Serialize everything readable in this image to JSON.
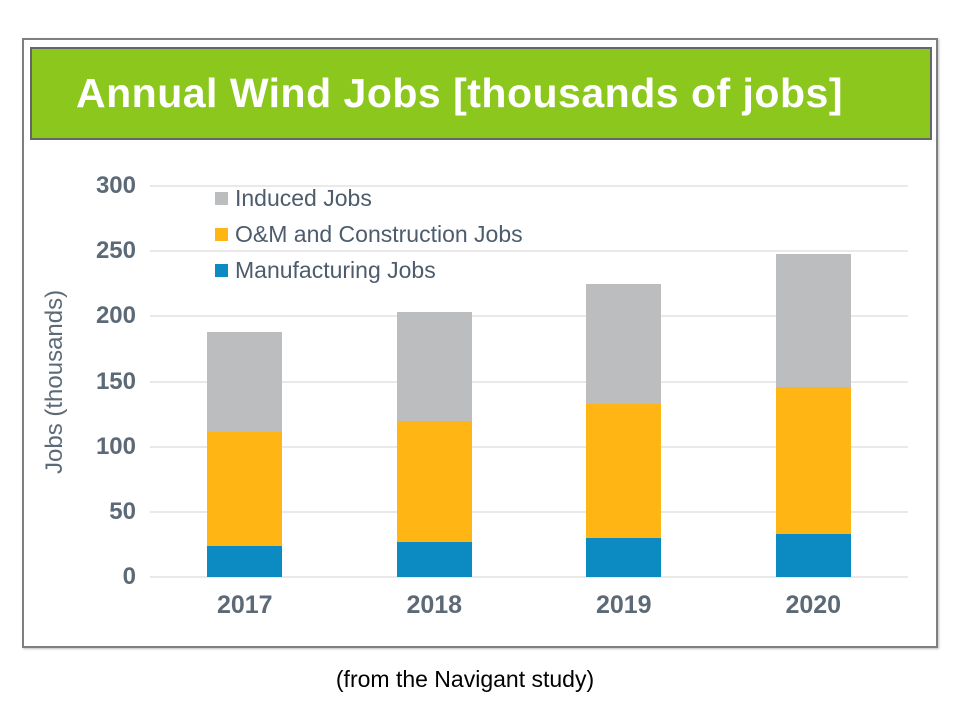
{
  "page": {
    "footer": "(from the Navigant study)"
  },
  "header": {
    "title": "Annual Wind Jobs [thousands of jobs]",
    "background_color": "#8CC71E",
    "border_color": "#65666a",
    "text_color": "#FFFFFF"
  },
  "chart_data": {
    "type": "bar",
    "stacked": true,
    "title": "Annual Wind Jobs [thousands of jobs]",
    "categories": [
      "2017",
      "2018",
      "2019",
      "2020"
    ],
    "series": [
      {
        "name": "Manufacturing Jobs",
        "color": "#0C8BC3",
        "values": [
          24,
          27,
          30,
          33
        ]
      },
      {
        "name": "O&M and Construction Jobs",
        "color": "#FFB513",
        "values": [
          87,
          93,
          103,
          113
        ]
      },
      {
        "name": "Induced Jobs",
        "color": "#BBBDBE",
        "values": [
          77,
          83,
          92,
          102
        ]
      }
    ],
    "stack_tops": {
      "manufacturing": [
        24,
        27,
        30,
        33
      ],
      "om_and_construction": [
        111,
        120,
        133,
        146
      ],
      "induced_total": [
        188,
        203,
        225,
        248
      ]
    },
    "totals": [
      188,
      203,
      225,
      248
    ],
    "xlabel": "",
    "ylabel": "Jobs (thousands)",
    "ylim": [
      0,
      300
    ],
    "yticks": [
      0,
      50,
      100,
      150,
      200,
      250,
      300
    ],
    "grid": true,
    "gridline_color": "#e9e9e9",
    "legend_position": "top-left",
    "legend_order_top_to_bottom": [
      "Induced Jobs",
      "O&M and Construction Jobs",
      "Manufacturing Jobs"
    ]
  }
}
